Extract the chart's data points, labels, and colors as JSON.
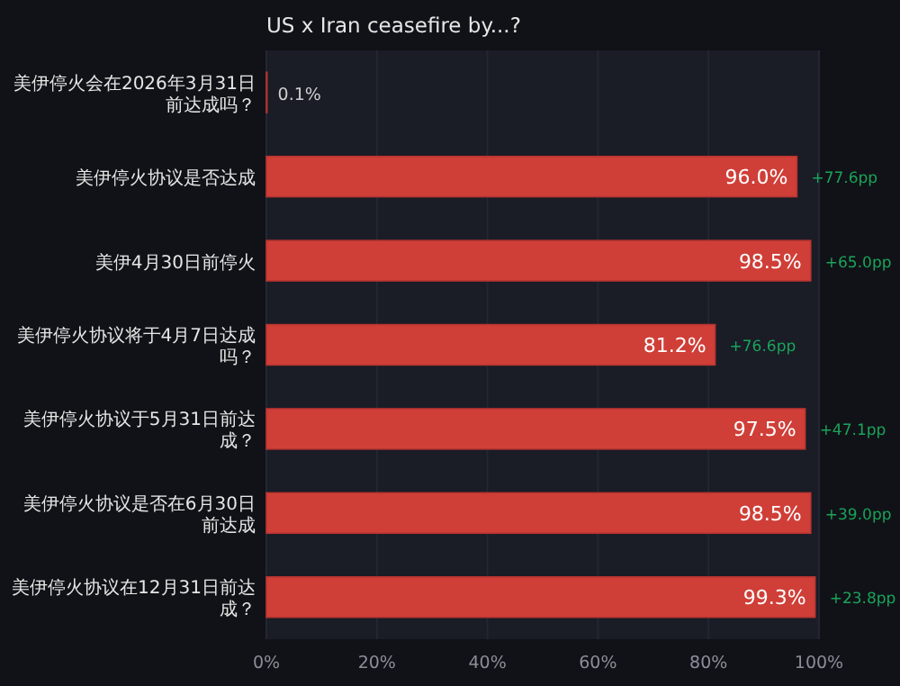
{
  "chart_data": {
    "type": "bar",
    "orientation": "horizontal",
    "title": "US x Iran ceasefire by...?",
    "categories": [
      "美伊停火会在2026年3月31日前达成吗？",
      "美伊停火协议是否达成",
      "美伊4月30日前停火",
      "美伊停火协议将于4月7日达成吗？",
      "美伊停火协议于5月31日前达成？",
      "美伊停火协议是否在6月30日前达成",
      "美伊停火协议在12月31日前达成？"
    ],
    "values": [
      0.1,
      96.0,
      98.5,
      81.2,
      97.5,
      98.5,
      99.3
    ],
    "value_labels": [
      "0.1%",
      "96.0%",
      "98.5%",
      "81.2%",
      "97.5%",
      "98.5%",
      "99.3%"
    ],
    "color": "#cf3f38",
    "xlim": [
      0,
      100
    ],
    "xticks": [
      {
        "value": 0,
        "label": "0%"
      },
      {
        "value": 20,
        "label": "20%"
      },
      {
        "value": 40,
        "label": "40%"
      },
      {
        "value": 60,
        "label": "60%"
      },
      {
        "value": 80,
        "label": "80%"
      },
      {
        "value": 100,
        "label": "100%"
      }
    ],
    "grid": "x",
    "annotations": [
      {
        "text": "+77.6pp",
        "x": 96.0,
        "y": "美伊停火协议是否达成"
      },
      {
        "text": "+65.0pp",
        "x": 98.5,
        "y": "美伊4月30日前停火"
      },
      {
        "text": "+76.6pp",
        "x": 81.2,
        "y": "美伊停火协议将于4月7日达成吗？"
      },
      {
        "text": "+47.1pp",
        "x": 97.5,
        "y": "美伊停火协议于5月31日前达成？"
      },
      {
        "text": "+39.0pp",
        "x": 98.5,
        "y": "美伊停火协议是否在6月30日前达成"
      },
      {
        "text": "+23.8pp",
        "x": 99.3,
        "y": "美伊停火协议在12月31日前达成？"
      }
    ]
  }
}
